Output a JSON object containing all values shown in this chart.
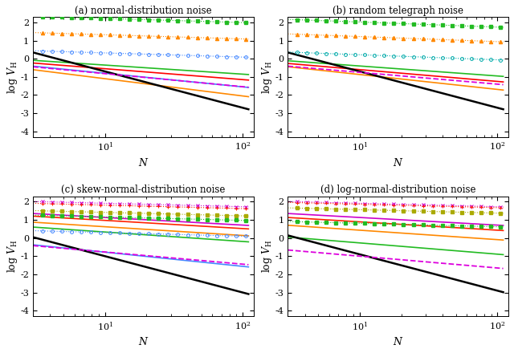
{
  "subplot_titles": [
    "(a) normal-distribution noise",
    "(b) random telegraph noise",
    "(c) skew-normal-distribution noise",
    "(d) log-normal-distribution noise"
  ],
  "xlim": [
    3,
    120
  ],
  "ylim": [
    -4.3,
    2.3
  ],
  "yticks": [
    -4,
    -3,
    -2,
    -1,
    0,
    1,
    2
  ],
  "xticks": [
    10,
    100
  ],
  "subplot_configs": [
    [
      [
        "dotted_sq",
        "#22bb22",
        2.45,
        -0.23
      ],
      [
        "dotted_tri",
        "#ff8800",
        1.55,
        -0.23
      ],
      [
        "dotted_circ",
        "#4488ff",
        0.55,
        -0.23
      ],
      [
        "solid",
        "#22bb22",
        0.15,
        -0.5
      ],
      [
        "solid",
        "#ff0000",
        0.05,
        -0.6
      ],
      [
        "solid",
        "#4488ff",
        -0.05,
        -0.75
      ],
      [
        "solid",
        "#ff8800",
        -0.15,
        -0.95
      ],
      [
        "dashed",
        "#dd00dd",
        -0.1,
        -0.72
      ],
      [
        "solid",
        "#000000",
        1.3,
        -2.0
      ]
    ],
    [
      [
        "dotted_sq",
        "#22bb22",
        2.3,
        -0.28
      ],
      [
        "dotted_tri",
        "#ff8800",
        1.5,
        -0.28
      ],
      [
        "dotted_circ",
        "#00aaaa",
        0.5,
        -0.28
      ],
      [
        "solid",
        "#22bb22",
        0.15,
        -0.55
      ],
      [
        "solid",
        "#ff0000",
        0.05,
        -0.65
      ],
      [
        "solid",
        "#ff8800",
        -0.05,
        -0.82
      ],
      [
        "dashed",
        "#dd00dd",
        -0.1,
        -0.65
      ],
      [
        "solid",
        "#000000",
        1.3,
        -2.0
      ]
    ],
    [
      [
        "dotted_x",
        "#cc00cc",
        2.1,
        -0.19
      ],
      [
        "dotted_plus",
        "#ff2200",
        2.0,
        -0.19
      ],
      [
        "dotted_sq",
        "#aaaa00",
        1.6,
        -0.19
      ],
      [
        "dotted_sq",
        "#22bb22",
        1.35,
        -0.19
      ],
      [
        "dotted_circ",
        "#4488ff",
        0.5,
        -0.2
      ],
      [
        "solid",
        "#cc00cc",
        1.55,
        -0.42
      ],
      [
        "solid",
        "#ff2200",
        1.42,
        -0.45
      ],
      [
        "solid",
        "#ff8800",
        1.1,
        -0.48
      ],
      [
        "solid",
        "#22bb22",
        0.85,
        -0.52
      ],
      [
        "solid",
        "#4488ff",
        0.0,
        -0.78
      ],
      [
        "dashed",
        "#dd00dd",
        -0.1,
        -0.67
      ],
      [
        "solid",
        "#000000",
        1.0,
        -2.0
      ]
    ],
    [
      [
        "dotted_x",
        "#cc00cc",
        2.1,
        -0.19
      ],
      [
        "dotted_plus",
        "#ff2200",
        2.05,
        -0.19
      ],
      [
        "dotted_sq",
        "#aaaa00",
        1.75,
        -0.19
      ],
      [
        "dotted_sq",
        "#22bb22",
        1.0,
        -0.19
      ],
      [
        "solid",
        "#cc00cc",
        1.55,
        -0.42
      ],
      [
        "solid",
        "#ff2200",
        1.35,
        -0.46
      ],
      [
        "solid",
        "#ff8800",
        0.95,
        -0.52
      ],
      [
        "solid",
        "#22bb22",
        0.35,
        -0.62
      ],
      [
        "dashed",
        "#dd00dd",
        -0.35,
        -0.65
      ],
      [
        "solid",
        "#000000",
        1.1,
        -2.0
      ]
    ]
  ]
}
